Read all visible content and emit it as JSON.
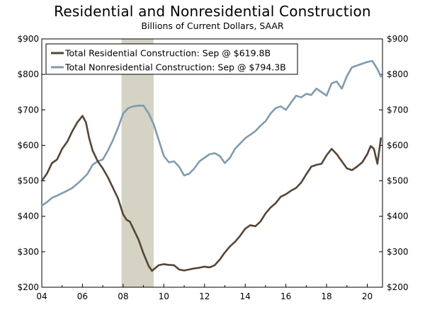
{
  "chart_data": {
    "type": "line",
    "title": "Residential and Nonresidential Construction",
    "subtitle": "Billions of Current Dollars, SAAR",
    "xlabel": "",
    "ylabel": "",
    "xlim": [
      2004,
      2020.75
    ],
    "ylim": [
      200,
      900
    ],
    "x_ticks": [
      2004,
      2006,
      2008,
      2010,
      2012,
      2014,
      2016,
      2018,
      2020
    ],
    "x_tick_labels": [
      "04",
      "06",
      "08",
      "10",
      "12",
      "14",
      "16",
      "18",
      "20"
    ],
    "y_ticks": [
      200,
      300,
      400,
      500,
      600,
      700,
      800,
      900
    ],
    "y_tick_labels": [
      "$200",
      "$300",
      "$400",
      "$500",
      "$600",
      "$700",
      "$800",
      "$900"
    ],
    "recession": {
      "start": 2007.92,
      "end": 2009.5,
      "color": "#d4d3c4"
    },
    "legend_position": "top-left",
    "series": [
      {
        "name": "Total Residential Construction: Sep @ $619.8B",
        "color": "#574535",
        "x": [
          2004,
          2004.25,
          2004.5,
          2004.75,
          2005,
          2005.25,
          2005.5,
          2005.75,
          2006,
          2006.17,
          2006.33,
          2006.5,
          2006.75,
          2007,
          2007.25,
          2007.5,
          2007.75,
          2008,
          2008.17,
          2008.33,
          2008.5,
          2008.75,
          2009,
          2009.25,
          2009.42,
          2009.5,
          2009.75,
          2010,
          2010.25,
          2010.5,
          2010.75,
          2011,
          2011.25,
          2011.5,
          2011.75,
          2012,
          2012.25,
          2012.5,
          2012.75,
          2013,
          2013.25,
          2013.5,
          2013.75,
          2014,
          2014.25,
          2014.5,
          2014.75,
          2015,
          2015.25,
          2015.5,
          2015.75,
          2016,
          2016.25,
          2016.5,
          2016.75,
          2017,
          2017.25,
          2017.5,
          2017.75,
          2018,
          2018.25,
          2018.5,
          2018.75,
          2019,
          2019.25,
          2019.5,
          2019.75,
          2020,
          2020.17,
          2020.33,
          2020.5,
          2020.67
        ],
        "values": [
          500,
          520,
          550,
          560,
          590,
          610,
          640,
          665,
          683,
          665,
          620,
          585,
          555,
          535,
          510,
          480,
          450,
          405,
          390,
          385,
          365,
          335,
          295,
          260,
          246,
          250,
          262,
          265,
          263,
          262,
          250,
          247,
          250,
          253,
          255,
          258,
          256,
          262,
          278,
          298,
          315,
          328,
          345,
          365,
          375,
          372,
          385,
          408,
          425,
          437,
          455,
          462,
          472,
          480,
          495,
          518,
          540,
          545,
          548,
          572,
          590,
          575,
          555,
          535,
          530,
          540,
          552,
          575,
          598,
          590,
          548,
          620
        ]
      },
      {
        "name": "Total Nonresidential Construction: Sep @ $794.3B",
        "color": "#7f9bb0",
        "x": [
          2004,
          2004.25,
          2004.5,
          2004.75,
          2005,
          2005.25,
          2005.5,
          2005.75,
          2006,
          2006.25,
          2006.5,
          2006.75,
          2007,
          2007.25,
          2007.5,
          2007.75,
          2008,
          2008.25,
          2008.5,
          2008.75,
          2009,
          2009.25,
          2009.5,
          2009.75,
          2010,
          2010.25,
          2010.5,
          2010.75,
          2011,
          2011.25,
          2011.5,
          2011.75,
          2012,
          2012.25,
          2012.5,
          2012.75,
          2013,
          2013.25,
          2013.5,
          2013.75,
          2014,
          2014.25,
          2014.5,
          2014.75,
          2015,
          2015.25,
          2015.5,
          2015.75,
          2016,
          2016.25,
          2016.5,
          2016.75,
          2017,
          2017.25,
          2017.5,
          2017.75,
          2018,
          2018.25,
          2018.5,
          2018.75,
          2019,
          2019.25,
          2019.5,
          2019.75,
          2020,
          2020.25,
          2020.5,
          2020.67
        ],
        "values": [
          430,
          440,
          452,
          458,
          465,
          472,
          480,
          492,
          505,
          520,
          545,
          555,
          560,
          585,
          615,
          650,
          690,
          705,
          710,
          712,
          712,
          690,
          660,
          615,
          570,
          552,
          555,
          540,
          515,
          520,
          535,
          555,
          565,
          575,
          578,
          570,
          550,
          565,
          590,
          605,
          620,
          630,
          640,
          655,
          668,
          690,
          705,
          710,
          700,
          720,
          740,
          735,
          745,
          742,
          760,
          750,
          740,
          775,
          780,
          760,
          795,
          820,
          825,
          830,
          835,
          838,
          815,
          794
        ]
      }
    ]
  }
}
